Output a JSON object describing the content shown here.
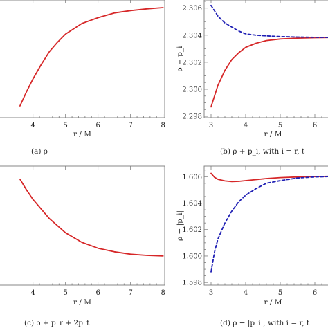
{
  "chart_data": [
    {
      "type": "line",
      "caption": "(a) ρ",
      "xlabel": "r / M",
      "ylabel": "",
      "xlim": [
        2.9,
        8.05
      ],
      "ylim": [
        0,
        1
      ],
      "xticks": [
        4,
        5,
        6,
        7,
        8
      ],
      "yticks": [],
      "series": [
        {
          "color": "#d62728",
          "dash": false,
          "x": [
            3.6,
            3.8,
            4.0,
            4.25,
            4.5,
            4.75,
            5.0,
            5.5,
            6.0,
            6.5,
            7.0,
            7.5,
            8.0
          ],
          "y": [
            0.1,
            0.22,
            0.33,
            0.45,
            0.56,
            0.64,
            0.71,
            0.8,
            0.85,
            0.89,
            0.91,
            0.925,
            0.935
          ]
        }
      ]
    },
    {
      "type": "line",
      "caption": "(b) ρ + p_i, with i = r, t",
      "xlabel": "r / M",
      "ylabel": "ρ + p_i",
      "xlim": [
        2.8,
        6.5
      ],
      "ylim": [
        2.2979,
        2.3066
      ],
      "xticks": [
        3,
        4,
        5,
        6
      ],
      "yticks": [
        2.298,
        2.3,
        2.302,
        2.304,
        2.306
      ],
      "ytick_labels": [
        "2.298",
        "2.300",
        "2.302",
        "2.304",
        "2.306"
      ],
      "series": [
        {
          "color": "#d62728",
          "dash": false,
          "x": [
            3.0,
            3.2,
            3.4,
            3.6,
            3.8,
            4.0,
            4.3,
            4.6,
            5.0,
            5.5,
            6.0,
            6.5
          ],
          "y": [
            2.2987,
            2.3003,
            2.3014,
            2.3022,
            2.3027,
            2.3031,
            2.3034,
            2.3036,
            2.30372,
            2.30378,
            2.30381,
            2.30383
          ]
        },
        {
          "color": "#1f1fb4",
          "dash": true,
          "x": [
            3.0,
            3.2,
            3.4,
            3.6,
            3.8,
            4.0,
            4.3,
            4.6,
            5.0,
            5.5,
            6.0,
            6.5
          ],
          "y": [
            2.3062,
            2.3054,
            2.3049,
            2.3046,
            2.3043,
            2.3041,
            2.304,
            2.30395,
            2.3039,
            2.30386,
            2.30384,
            2.30383
          ]
        }
      ]
    },
    {
      "type": "line",
      "caption": "(c) ρ + p_r + 2p_t",
      "xlabel": "r / M",
      "ylabel": "",
      "xlim": [
        2.9,
        8.05
      ],
      "ylim": [
        0,
        1
      ],
      "xticks": [
        4,
        5,
        6,
        7,
        8
      ],
      "yticks": [],
      "series": [
        {
          "color": "#d62728",
          "dash": false,
          "x": [
            3.6,
            3.8,
            4.0,
            4.25,
            4.5,
            4.75,
            5.0,
            5.5,
            6.0,
            6.5,
            7.0,
            7.5,
            8.0
          ],
          "y": [
            0.89,
            0.8,
            0.72,
            0.64,
            0.56,
            0.5,
            0.44,
            0.36,
            0.31,
            0.28,
            0.26,
            0.25,
            0.245
          ]
        }
      ]
    },
    {
      "type": "line",
      "caption": "(d) ρ − |p_i|, with i = r, t",
      "xlabel": "r / M",
      "ylabel": "ρ − |p_i|",
      "xlim": [
        2.8,
        6.5
      ],
      "ylim": [
        1.5978,
        1.6068
      ],
      "xticks": [
        3,
        4,
        5,
        6
      ],
      "yticks": [
        1.598,
        1.6,
        1.602,
        1.604,
        1.606
      ],
      "ytick_labels": [
        "1.598",
        "1.600",
        "1.602",
        "1.604",
        "1.606"
      ],
      "series": [
        {
          "color": "#d62728",
          "dash": false,
          "x": [
            3.0,
            3.1,
            3.2,
            3.4,
            3.6,
            3.8,
            4.0,
            4.3,
            4.6,
            5.0,
            5.5,
            6.0,
            6.5
          ],
          "y": [
            1.60625,
            1.60595,
            1.6058,
            1.60568,
            1.60563,
            1.60565,
            1.6057,
            1.60578,
            1.60586,
            1.60593,
            1.60598,
            1.60601,
            1.60603
          ]
        },
        {
          "color": "#1f1fb4",
          "dash": true,
          "x": [
            3.0,
            3.1,
            3.2,
            3.4,
            3.6,
            3.8,
            4.0,
            4.3,
            4.6,
            5.0,
            5.5,
            6.0,
            6.5
          ],
          "y": [
            1.5988,
            1.6003,
            1.6013,
            1.6025,
            1.6034,
            1.6041,
            1.6046,
            1.6051,
            1.6055,
            1.6057,
            1.6059,
            1.60598,
            1.60602
          ]
        }
      ]
    }
  ]
}
